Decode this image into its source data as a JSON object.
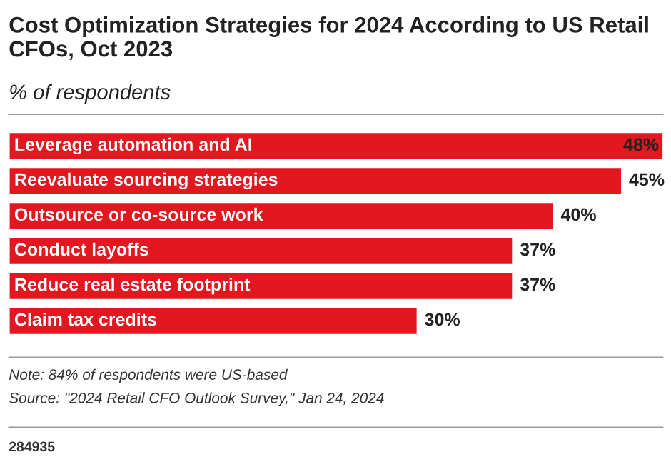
{
  "chart_data": {
    "type": "bar",
    "orientation": "horizontal",
    "title": "Cost Optimization Strategies for 2024 According to US Retail CFOs, Oct 2023",
    "subtitle": "% of respondents",
    "categories": [
      "Leverage automation and AI",
      "Reevaluate sourcing strategies",
      "Outsource or co-source work",
      "Conduct layoffs",
      "Reduce real estate footprint",
      "Claim tax credits"
    ],
    "values": [
      48,
      45,
      40,
      37,
      37,
      30
    ],
    "value_labels": [
      "48%",
      "45%",
      "40%",
      "37%",
      "37%",
      "30%"
    ],
    "color": "#e2171f",
    "annotations": [
      "Note: 84% of respondents were US-based",
      "Source: \"2024 Retail CFO Outlook Survey,\" Jan 24, 2024",
      "284935"
    ]
  }
}
